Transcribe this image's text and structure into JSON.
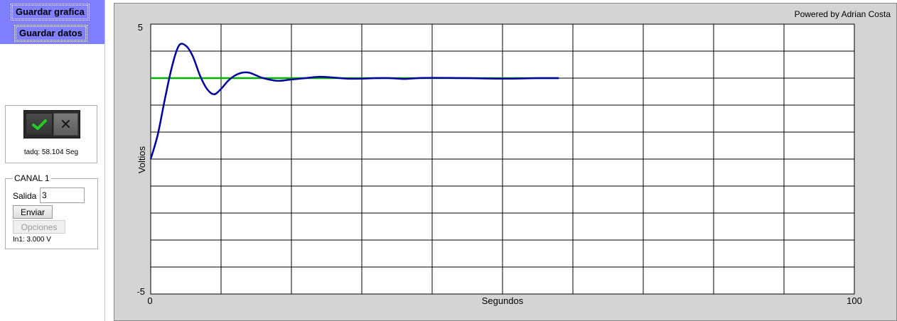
{
  "save_panel": {
    "save_chart_label": "Guardar grafica",
    "save_data_label": "Guardar datos",
    "bg_color": "#8080ff"
  },
  "acquisition": {
    "toggle_state": "on",
    "time_label": "tadq: 58.104 Seg"
  },
  "channel": {
    "legend": "CANAL 1",
    "output_label": "Salida",
    "output_value": "3",
    "send_label": "Enviar",
    "options_label": "Opciones",
    "input_reading": "In1: 3.000 V"
  },
  "chart_data": {
    "type": "line",
    "credit": "Powered by Adrian Costa",
    "xlabel": "Segundos",
    "ylabel": "Voltios",
    "xlim": [
      0,
      100
    ],
    "ylim": [
      -5,
      5
    ],
    "x_tick_labels": [
      "0",
      "100"
    ],
    "y_tick_labels": [
      "5",
      "-5"
    ],
    "grid": true,
    "x_divisions": 10,
    "y_divisions": 10,
    "series": [
      {
        "color": "#00b000",
        "x": [
          0,
          58
        ],
        "y": [
          3,
          3
        ]
      },
      {
        "color": "#0000a0",
        "x": [
          0,
          1,
          2,
          3,
          4,
          5,
          6,
          7,
          8,
          9,
          10,
          11,
          12,
          13,
          14,
          15,
          16,
          18,
          20,
          22,
          24,
          26,
          28,
          30,
          32,
          34,
          36,
          38,
          40,
          45,
          50,
          55,
          58
        ],
        "y": [
          0,
          0.9,
          2.2,
          3.4,
          4.2,
          4.2,
          3.8,
          3.1,
          2.6,
          2.4,
          2.6,
          2.9,
          3.1,
          3.2,
          3.2,
          3.1,
          3.0,
          2.9,
          2.95,
          3.0,
          3.05,
          3.02,
          2.98,
          2.98,
          3.0,
          3.0,
          2.97,
          3.0,
          3.01,
          3.0,
          2.98,
          3.0,
          3.0
        ]
      }
    ]
  }
}
